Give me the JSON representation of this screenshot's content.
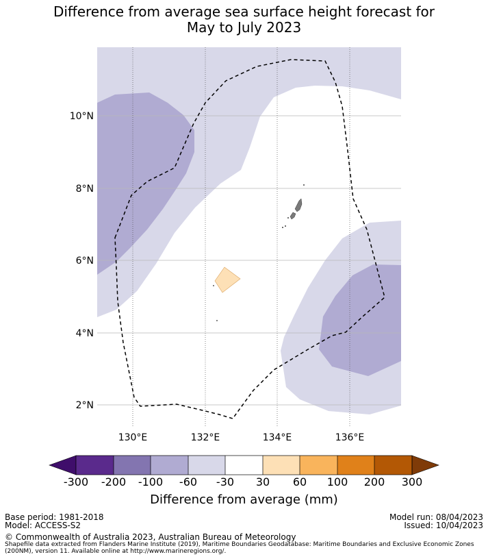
{
  "title": {
    "line1": "Difference from average sea surface height forecast for",
    "line2": "May to July 2023"
  },
  "map": {
    "lat_labels": [
      "10°N",
      "8°N",
      "6°N",
      "4°N",
      "2°N"
    ],
    "lon_labels": [
      "130°E",
      "132°E",
      "134°E",
      "136°E"
    ],
    "lon_range": [
      129,
      137.5
    ],
    "lat_range": [
      1.5,
      11.9
    ],
    "region_colors": {
      "level_neg60_neg100": "#b0abd2",
      "level_neg30_neg60": "#d8d8e9",
      "level_30_60": "#fde0b6",
      "land": "#808080",
      "eez_line": "#000000"
    }
  },
  "colorbar": {
    "tick_labels": [
      "-300",
      "-200",
      "-100",
      "-60",
      "-30",
      "30",
      "60",
      "100",
      "200",
      "300"
    ],
    "colors": [
      "#3f0e6b",
      "#5a2a8c",
      "#8375b0",
      "#b0abd2",
      "#d8d8e9",
      "#ffffff",
      "#fde0b6",
      "#f9b45c",
      "#e0811a",
      "#b35805",
      "#7f3b08"
    ],
    "title": "Difference from average (mm)"
  },
  "footer": {
    "base_period": "Base period: 1981-2018",
    "model": "Model: ACCESS-S2",
    "model_run": "Model run: 08/04/2023",
    "issued": "Issued: 10/04/2023",
    "copyright": "© Commonwealth of Australia 2023, Australian Bureau of Meteorology",
    "shapefile_note": "Shapefile data extracted from Flanders Marine Institute (2019), Maritime Boundaries Geodatabase: Maritime Boundaries and Exclusive Economic Zones (200NM), version 11. Available online at http://www.marineregions.org/."
  }
}
